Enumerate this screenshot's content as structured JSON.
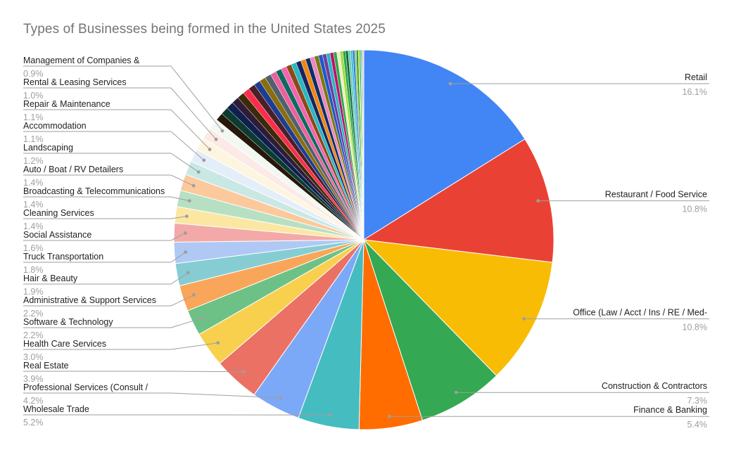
{
  "chart_data": {
    "type": "pie",
    "title": "Types of Businesses being formed in the United States 2025",
    "unit": "%",
    "legend_position": "outside-labels-with-leader-lines",
    "slices": [
      {
        "label": "Retail",
        "value": 16.1,
        "color": "#4285F4",
        "side": "right"
      },
      {
        "label": "Restaurant / Food Service",
        "value": 10.8,
        "color": "#E94235",
        "side": "right"
      },
      {
        "label": "Office (Law / Acct / Ins / RE / Med-",
        "value": 10.8,
        "color": "#F9BC05",
        "side": "right"
      },
      {
        "label": "Construction & Contractors",
        "value": 7.3,
        "color": "#34A853",
        "side": "right"
      },
      {
        "label": "Finance & Banking",
        "value": 5.4,
        "color": "#FF6D00",
        "side": "right"
      },
      {
        "label": "Wholesale Trade",
        "value": 5.2,
        "color": "#45BCC0",
        "side": "left"
      },
      {
        "label": "Professional Services (Consult /",
        "value": 4.2,
        "color": "#7BA9F7",
        "side": "left"
      },
      {
        "label": "Real Estate",
        "value": 3.9,
        "color": "#EB7164",
        "side": "left"
      },
      {
        "label": "Health Care Services",
        "value": 3.0,
        "color": "#F8D04D",
        "side": "left"
      },
      {
        "label": "Software & Technology",
        "value": 2.2,
        "color": "#6EC186",
        "side": "left"
      },
      {
        "label": "Administrative & Support Services",
        "value": 2.2,
        "color": "#F9A65A",
        "side": "left"
      },
      {
        "label": "Hair & Beauty",
        "value": 1.9,
        "color": "#85CDD3",
        "side": "left"
      },
      {
        "label": "Truck Transportation",
        "value": 1.8,
        "color": "#AFC9F4",
        "side": "left"
      },
      {
        "label": "Social Assistance",
        "value": 1.6,
        "color": "#F4A9A9",
        "side": "left"
      },
      {
        "label": "Cleaning Services",
        "value": 1.4,
        "color": "#FBE7A2",
        "side": "left"
      },
      {
        "label": "Broadcasting & Telecommunications",
        "value": 1.4,
        "color": "#B7E0C3",
        "side": "left"
      },
      {
        "label": "Auto / Boat / RV Detailers",
        "value": 1.4,
        "color": "#FBC99B",
        "side": "left"
      },
      {
        "label": "Landscaping",
        "value": 1.2,
        "color": "#C9E8E4",
        "side": "left"
      },
      {
        "label": "Accommodation",
        "value": 1.1,
        "color": "#E4EEF9",
        "side": "left"
      },
      {
        "label": "Repair & Maintenance",
        "value": 1.1,
        "color": "#FDF5E0",
        "side": "left"
      },
      {
        "label": "Rental & Leasing Services",
        "value": 1.0,
        "color": "#FBEAE6",
        "side": "left"
      },
      {
        "label": "Management of Companies &",
        "value": 0.9,
        "color": "#F1F8F1",
        "side": "left"
      }
    ],
    "other_slices": {
      "description": "many small unlabeled slices (each under 0.9%) filling the remainder of the pie",
      "total_value": 14.1,
      "colors": [
        "#26190A",
        "#0B3B31",
        "#101F4E",
        "#2F1C38",
        "#3D2A07",
        "#FB2D4A",
        "#4A1F28",
        "#1D3D91",
        "#8A6D0E",
        "#50616E",
        "#EE5F9E",
        "#0D6B5E",
        "#F563AE",
        "#8A4A18",
        "#28B8C4",
        "#17255E",
        "#F2860F",
        "#0D2F66",
        "#EF86C3",
        "#7A7A10",
        "#2255CC",
        "#6A3FA0",
        "#2AB4C0",
        "#C00F6A",
        "#2DA94A",
        "#F0ECC2",
        "#9FDC3F",
        "#28A745",
        "#0D6B3A",
        "#72C7B2",
        "#38C2D4",
        "#2B6FE3",
        "#8FD14F",
        "#127A28",
        "#B5E61D",
        "#2E9E5B",
        "#68E0CF",
        "#4A90D9",
        "#D6E34A",
        "#EF3A9B"
      ]
    },
    "styles": {
      "background": "#FFFFFF",
      "title_color": "#757575",
      "label_color": "#212121",
      "percent_color": "#9E9E9E",
      "leader_line_color": "#9E9E9E",
      "slice_border_color": "#FFFFFF"
    }
  }
}
